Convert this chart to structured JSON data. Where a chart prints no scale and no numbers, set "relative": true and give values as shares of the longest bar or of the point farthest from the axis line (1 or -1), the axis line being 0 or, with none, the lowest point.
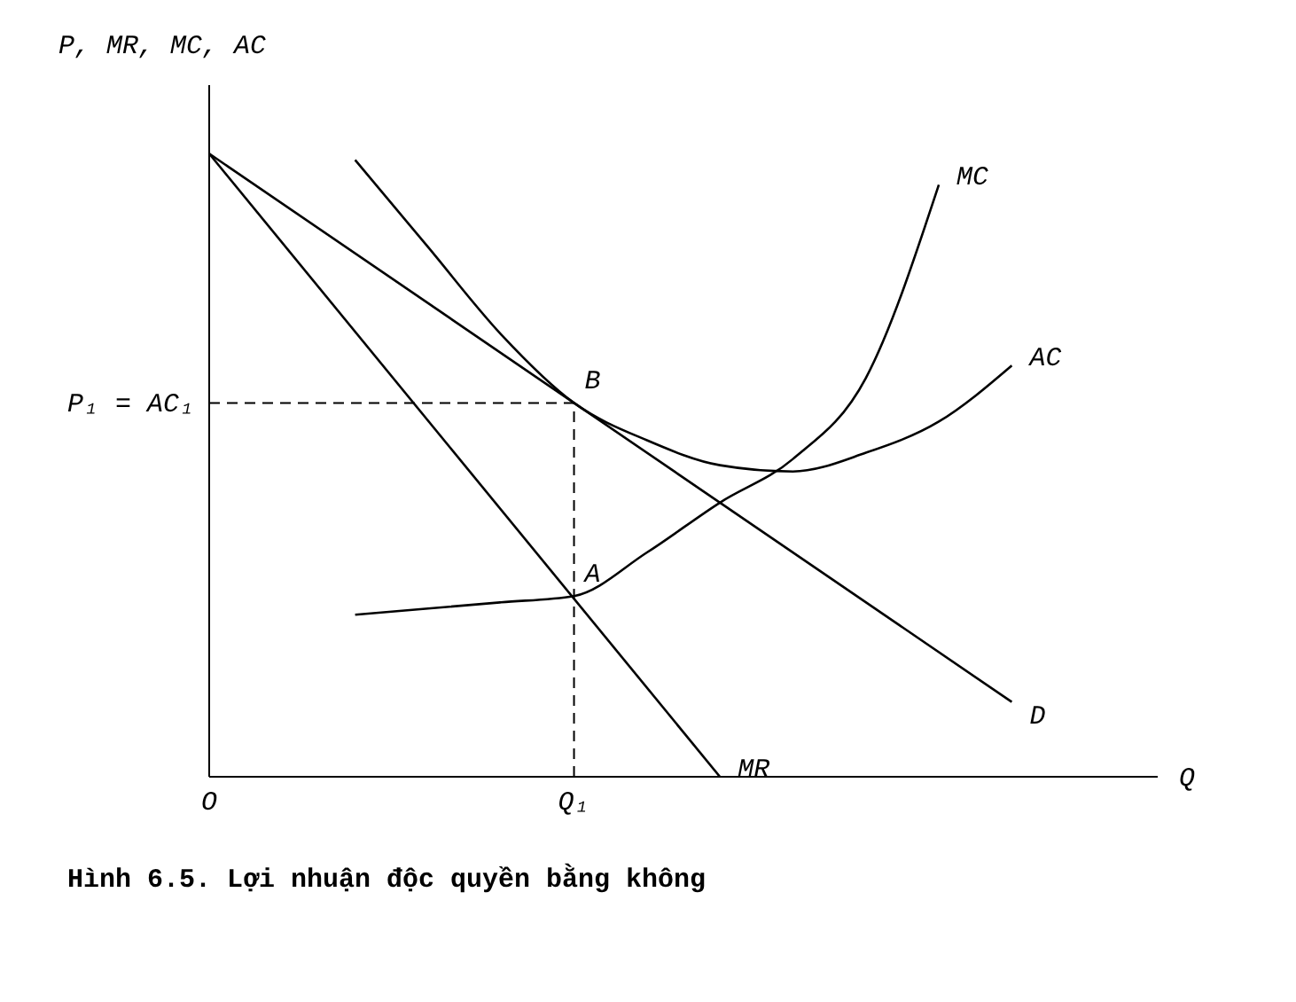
{
  "chart_data": {
    "type": "line",
    "relative": true,
    "ylabel": "P, MR, MC, AC",
    "xlabel": "Q",
    "marker": "none",
    "categories": [
      "O",
      null,
      null,
      null,
      null,
      "Q₁",
      null,
      null,
      null,
      null,
      null,
      null,
      null,
      null
    ],
    "series": [
      {
        "name": "D",
        "color": "#000000",
        "values": [
          1.0,
          null,
          null,
          null,
          null,
          null,
          null,
          null,
          null,
          null,
          null,
          0.12,
          null,
          null
        ]
      },
      {
        "name": "MR",
        "color": "#000000",
        "values": [
          1.0,
          null,
          null,
          null,
          null,
          null,
          null,
          0,
          null,
          null,
          null,
          null,
          null,
          null
        ]
      },
      {
        "name": "AC",
        "color": "#000000",
        "values": [
          null,
          null,
          0.99,
          0.85,
          0.71,
          0.6,
          0.54,
          0.5,
          0.49,
          0.52,
          0.57,
          0.66,
          null,
          null
        ]
      },
      {
        "name": "MC",
        "color": "#000000",
        "values": [
          null,
          null,
          0.26,
          0.27,
          0.28,
          0.29,
          0.36,
          0.44,
          0.51,
          0.64,
          0.95,
          null,
          null,
          null
        ]
      }
    ],
    "ref_lines": [
      {
        "axis": "y",
        "value": 0.6,
        "label": "P₁ = AC₁",
        "line_style": "dashed",
        "color": "#000000"
      },
      {
        "axis": "x",
        "value": "Q₁",
        "line_style": "dashed",
        "color": "#000000"
      }
    ],
    "annotations": [
      {
        "text": "B",
        "x": "Q₁",
        "y": 0.6
      },
      {
        "text": "A",
        "x": "Q₁",
        "y": 0.29
      },
      "Hình 6.5. Lợi nhuận độc quyền bằng không"
    ]
  }
}
